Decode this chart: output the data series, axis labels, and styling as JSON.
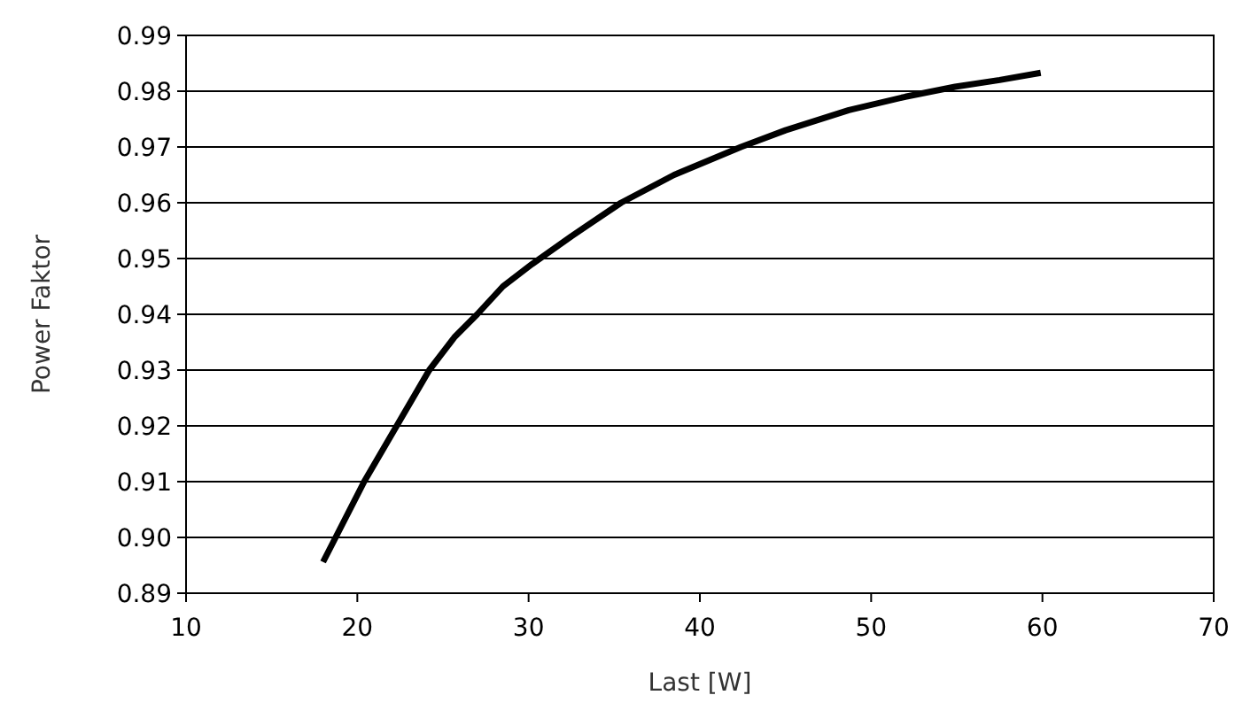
{
  "chart_data": {
    "type": "line",
    "xlabel": "Last [W]",
    "ylabel": "Power Faktor",
    "series": [
      {
        "color": "#000000",
        "x": [
          18.0,
          20.4,
          22.3,
          24.2,
          25.7,
          27.0,
          28.5,
          30.2,
          32.5,
          35.4,
          38.5,
          42.4,
          45.0,
          48.7,
          52.0,
          54.9,
          57.5,
          59.9
        ],
        "values": [
          0.8956,
          0.91,
          0.92,
          0.93,
          0.936,
          0.94,
          0.945,
          0.949,
          0.954,
          0.96,
          0.965,
          0.97,
          0.973,
          0.9766,
          0.979,
          0.9808,
          0.982,
          0.9833
        ]
      }
    ],
    "xlim": [
      10,
      70
    ],
    "xticks": [
      10,
      20,
      30,
      40,
      50,
      60,
      70
    ],
    "ylim": [
      0.89,
      0.99
    ],
    "yticks": [
      {
        "value": 0.89,
        "label": "0.89"
      },
      {
        "value": 0.9,
        "label": "0.90"
      },
      {
        "value": 0.91,
        "label": "0.91"
      },
      {
        "value": 0.92,
        "label": "0.92"
      },
      {
        "value": 0.93,
        "label": "0.93"
      },
      {
        "value": 0.94,
        "label": "0.94"
      },
      {
        "value": 0.95,
        "label": "0.95"
      },
      {
        "value": 0.96,
        "label": "0.96"
      },
      {
        "value": 0.97,
        "label": "0.97"
      },
      {
        "value": 0.98,
        "label": "0.98"
      },
      {
        "value": 0.99,
        "label": "0.99"
      }
    ],
    "grid": "y",
    "line_style": "solid",
    "marker": "none"
  }
}
